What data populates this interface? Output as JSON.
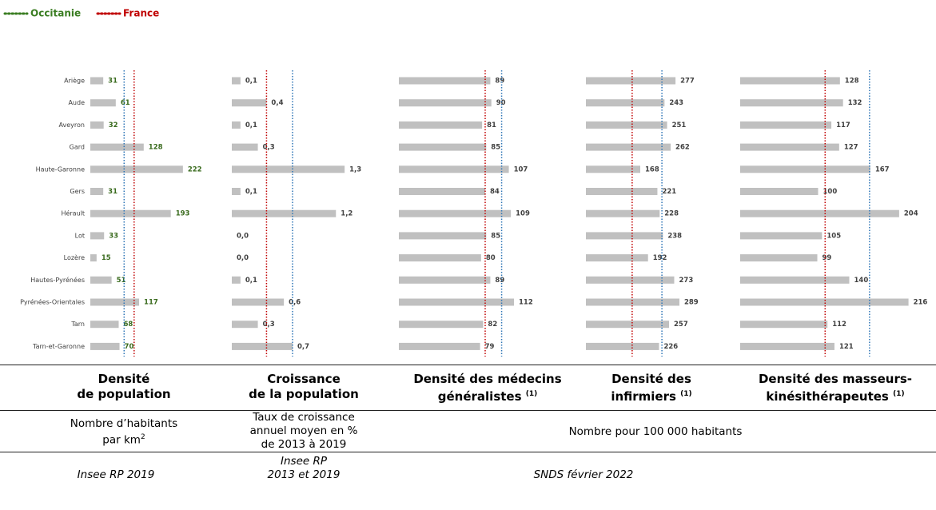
{
  "legend": [
    {
      "name": "Occitanie",
      "color": "#3a7d22"
    },
    {
      "name": "France",
      "color": "#c00000"
    }
  ],
  "line_colors": [
    "#2e75b6",
    "#c00000"
  ],
  "chart_data": [
    {
      "type": "bar",
      "categories": [
        "Ariège",
        "Aude",
        "Aveyron",
        "Gard",
        "Haute-Garonne",
        "Gers",
        "Hérault",
        "Lot",
        "Lozère",
        "Hautes-Pyrénées",
        "Pyrénées-Orientales",
        "Tarn",
        "Tarn-et-Garonne"
      ],
      "values": [
        31,
        61,
        32,
        128,
        222,
        31,
        193,
        33,
        15,
        51,
        117,
        68,
        70
      ],
      "color": "#c0c0c0",
      "label_color": "#3a6b1e",
      "xlim": [
        0,
        320
      ],
      "reference_values": [
        81,
        105
      ],
      "title": [
        "Densité",
        "de population"
      ]
    },
    {
      "type": "bar",
      "values": [
        0.1,
        0.4,
        0.1,
        0.3,
        1.3,
        0.1,
        1.2,
        0.0,
        0.0,
        0.1,
        0.6,
        0.3,
        0.7
      ],
      "value_labels": [
        "0,1",
        "0,4",
        "0,1",
        "0,3",
        "1,3",
        "0,1",
        "1,2",
        "0,0",
        "0,0",
        "0,1",
        "0,6",
        "0,3",
        "0,7"
      ],
      "color": "#c0c0c0",
      "label_color": "#404040",
      "xlim": [
        0,
        1.75
      ],
      "reference_values": [
        0.7,
        0.4
      ],
      "title": [
        "Croissance",
        "de la population"
      ]
    },
    {
      "type": "bar",
      "values": [
        89,
        90,
        81,
        85,
        107,
        84,
        109,
        85,
        80,
        89,
        112,
        82,
        79
      ],
      "color": "#c0c0c0",
      "label_color": "#404040",
      "xlim": [
        0,
        168
      ],
      "reference_values": [
        100,
        84
      ],
      "title": [
        "Densité des médecins",
        "généralistes"
      ],
      "title_note": "(1)"
    },
    {
      "type": "bar",
      "values": [
        277,
        243,
        251,
        262,
        168,
        221,
        228,
        238,
        192,
        273,
        289,
        257,
        226
      ],
      "color": "#c0c0c0",
      "label_color": "#404040",
      "xlim": [
        0,
        425
      ],
      "reference_values": [
        235,
        143
      ],
      "title": [
        "Densité des",
        "infirmiers"
      ],
      "title_note": "(1)"
    },
    {
      "type": "bar",
      "values": [
        128,
        132,
        117,
        127,
        167,
        100,
        204,
        105,
        99,
        140,
        216,
        112,
        121
      ],
      "color": "#c0c0c0",
      "label_color": "#404040",
      "xlim": [
        0,
        240
      ],
      "reference_values": [
        166,
        109
      ],
      "title": [
        "Densité des masseurs-",
        "kinésithérapeutes"
      ],
      "title_note": "(1)"
    }
  ],
  "units": {
    "density": {
      "text": [
        "Nombre d’habitants",
        "par km"
      ],
      "sup": "2"
    },
    "growth": [
      "Taux de croissance",
      "annuel moyen en %",
      "de 2013 à 2019"
    ],
    "others": "Nombre pour 100 000 habitants"
  },
  "sources": {
    "density": "Insee RP 2019",
    "growth": [
      "Insee RP",
      "2013 et 2019"
    ],
    "others": "SNDS février 2022"
  }
}
